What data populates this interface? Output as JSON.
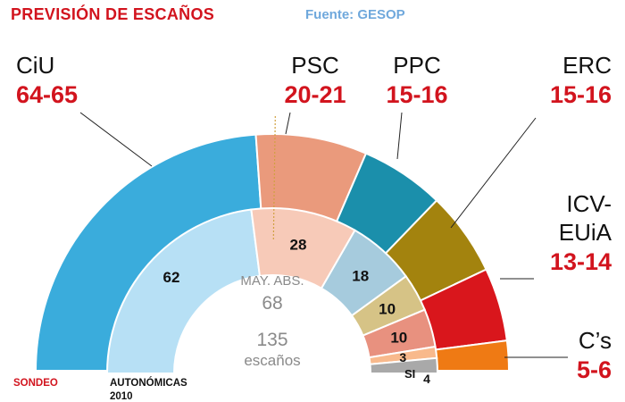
{
  "header": {
    "title": "PREVISIÓN DE ESCAÑOS",
    "source": "Fuente: GESOP"
  },
  "chart_data": {
    "type": "semicircle-donut",
    "total_seats": 135,
    "majority": 68,
    "center": {
      "majority_label": "MAY. ABS.",
      "majority_value": "68",
      "total_value": "135",
      "total_label": "escaños"
    },
    "outer_ring": {
      "label": "SONDEO",
      "series": [
        {
          "name": "CiU",
          "range": "64-65",
          "value": 64.5,
          "color": "#3aacdc"
        },
        {
          "name": "PSC",
          "range": "20-21",
          "value": 20.5,
          "color": "#ea9a7c"
        },
        {
          "name": "PPC",
          "range": "15-16",
          "value": 15.5,
          "color": "#1b8fab"
        },
        {
          "name": "ERC",
          "range": "15-16",
          "value": 15.5,
          "color": "#a3830e"
        },
        {
          "name": "ICV-EUiA",
          "name_lines": [
            "ICV-",
            "EUiA"
          ],
          "range": "13-14",
          "value": 13.5,
          "color": "#d9161c"
        },
        {
          "name": "C’s",
          "range": "5-6",
          "value": 5.5,
          "color": "#ef7a14"
        }
      ]
    },
    "inner_ring": {
      "label": "AUTONÓMICAS",
      "label_year": "2010",
      "series": [
        {
          "party": "CiU",
          "value": 62,
          "label": "62",
          "color": "#b7e0f5"
        },
        {
          "party": "PSC",
          "value": 28,
          "label": "28",
          "color": "#f7cab8"
        },
        {
          "party": "PPC",
          "value": 18,
          "label": "18",
          "color": "#a6cbdd"
        },
        {
          "party": "ERC",
          "value": 10,
          "label": "10",
          "color": "#d6c386"
        },
        {
          "party": "ICV-EUiA",
          "value": 10,
          "label": "10",
          "color": "#e8917f"
        },
        {
          "party": "C’s",
          "value": 3,
          "label": "3",
          "color": "#f8b98c"
        },
        {
          "party": "SI",
          "value": 4,
          "label": "4",
          "color": "#a9a9a9"
        }
      ],
      "extra_label": "SI"
    }
  }
}
